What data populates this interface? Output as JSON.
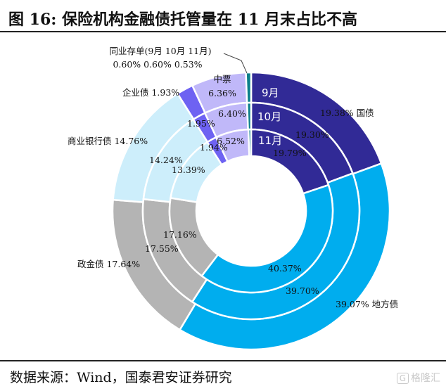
{
  "title": "图 16:  保险机构金融债托管量在 11 月末占比不高",
  "source": "数据来源：Wind，国泰君安证券研究",
  "watermark": {
    "box": "G",
    "text": "格隆汇"
  },
  "chart_data": {
    "type": "pie",
    "variant": "multi-ring donut",
    "rings": [
      "9月",
      "10月",
      "11月"
    ],
    "categories": [
      "国债",
      "地方债",
      "政金债",
      "商业银行债",
      "企业债",
      "中票",
      "同业存单"
    ],
    "colors": [
      "#312a96",
      "#00adee",
      "#b4b4b4",
      "#cdeefb",
      "#6e62f2",
      "#c0b8f9",
      "#0b7f8a"
    ],
    "series": [
      {
        "name": "9月",
        "values": [
          19.38,
          39.07,
          17.64,
          14.76,
          1.93,
          6.36,
          0.6
        ]
      },
      {
        "name": "10月",
        "values": [
          19.3,
          39.7,
          17.55,
          14.24,
          1.95,
          6.4,
          0.6
        ]
      },
      {
        "name": "11月",
        "values": [
          19.79,
          40.37,
          17.16,
          13.39,
          1.94,
          6.52,
          0.53
        ]
      }
    ],
    "label_text": {
      "国债": [
        "19.38%  国债",
        "19.30%",
        "19.79%"
      ],
      "地方债": [
        "39.07% 地方债",
        "39.70%",
        "40.37%"
      ],
      "政金债": [
        "政金债 17.64%",
        "17.55%",
        "17.16%"
      ],
      "商业银行债": [
        "商业银行债 14.76%",
        "14.24%",
        "13.39%"
      ],
      "企业债": [
        "企业债 1.93%",
        "1.95%",
        "1.94%"
      ],
      "中票": [
        "中票",
        "6.36%",
        "6.40%",
        "6.52%"
      ],
      "同业存单": [
        "同业存单(9月 10月 11月)",
        "0.60% 0.60% 0.53%"
      ]
    }
  }
}
